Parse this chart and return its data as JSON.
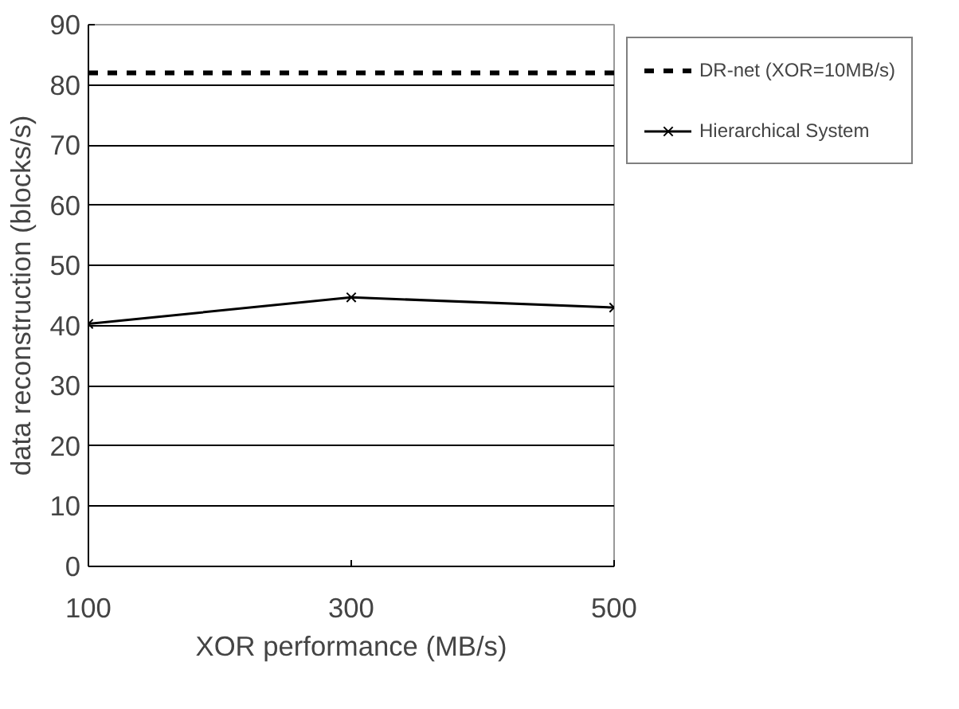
{
  "chart_data": {
    "type": "line",
    "xlabel": "XOR performance (MB/s)",
    "ylabel": "data reconstruction (blocks/s)",
    "x": [
      100,
      300,
      500
    ],
    "xlim": [
      100,
      500
    ],
    "xticks": [
      100,
      300,
      500
    ],
    "ylim": [
      0,
      90
    ],
    "yticks": [
      0,
      10,
      20,
      30,
      40,
      50,
      60,
      70,
      80,
      90
    ],
    "grid": "y",
    "legend": "right",
    "series": [
      {
        "name": "DR-net (XOR=10MB/s)",
        "color": "#000000",
        "x": [
          100,
          500
        ],
        "values": [
          82,
          82
        ],
        "line_style": "dashed",
        "marker": "none"
      },
      {
        "name": "Hierarchical System",
        "color": "#000000",
        "values": [
          40.3,
          44.7,
          43.0
        ],
        "line_style": "solid",
        "marker": "cross"
      }
    ]
  }
}
